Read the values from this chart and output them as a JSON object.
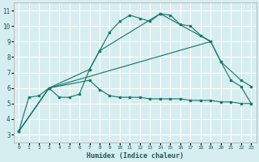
{
  "xlabel": "Humidex (Indice chaleur)",
  "bg_color": "#d7eef0",
  "grid_color": "#b8d8dc",
  "line_color": "#1a7a6e",
  "xlim": [
    -0.5,
    23.5
  ],
  "ylim": [
    2.5,
    11.5
  ],
  "xticks": [
    0,
    1,
    2,
    3,
    4,
    5,
    6,
    7,
    8,
    9,
    10,
    11,
    12,
    13,
    14,
    15,
    16,
    17,
    18,
    19,
    20,
    21,
    22,
    23
  ],
  "yticks": [
    3,
    4,
    5,
    6,
    7,
    8,
    9,
    10,
    11
  ],
  "series1": [
    [
      0,
      3.2
    ],
    [
      1,
      5.4
    ],
    [
      2,
      5.5
    ],
    [
      3,
      6.0
    ],
    [
      4,
      5.4
    ],
    [
      5,
      5.4
    ],
    [
      6,
      5.6
    ],
    [
      7,
      7.2
    ],
    [
      8,
      8.4
    ],
    [
      9,
      9.6
    ],
    [
      10,
      10.3
    ],
    [
      11,
      10.7
    ],
    [
      12,
      10.5
    ],
    [
      13,
      10.3
    ],
    [
      14,
      10.8
    ],
    [
      15,
      10.7
    ],
    [
      16,
      10.1
    ],
    [
      17,
      10.0
    ],
    [
      18,
      9.4
    ],
    [
      19,
      9.0
    ],
    [
      20,
      7.7
    ],
    [
      21,
      6.5
    ],
    [
      22,
      6.1
    ],
    [
      23,
      5.0
    ]
  ],
  "series2": [
    [
      0,
      3.2
    ],
    [
      3,
      6.0
    ],
    [
      7,
      7.2
    ],
    [
      8,
      8.4
    ],
    [
      14,
      10.8
    ],
    [
      19,
      9.0
    ],
    [
      20,
      7.7
    ],
    [
      22,
      6.5
    ],
    [
      23,
      6.1
    ]
  ],
  "series3": [
    [
      0,
      3.2
    ],
    [
      3,
      6.0
    ],
    [
      19,
      9.0
    ]
  ],
  "series4": [
    [
      0,
      3.2
    ],
    [
      3,
      6.0
    ],
    [
      7,
      6.5
    ],
    [
      8,
      5.9
    ],
    [
      9,
      5.5
    ],
    [
      10,
      5.4
    ],
    [
      11,
      5.4
    ],
    [
      12,
      5.4
    ],
    [
      13,
      5.3
    ],
    [
      14,
      5.3
    ],
    [
      15,
      5.3
    ],
    [
      16,
      5.3
    ],
    [
      17,
      5.2
    ],
    [
      18,
      5.2
    ],
    [
      19,
      5.2
    ],
    [
      20,
      5.1
    ],
    [
      21,
      5.1
    ],
    [
      22,
      5.0
    ],
    [
      23,
      5.0
    ]
  ]
}
